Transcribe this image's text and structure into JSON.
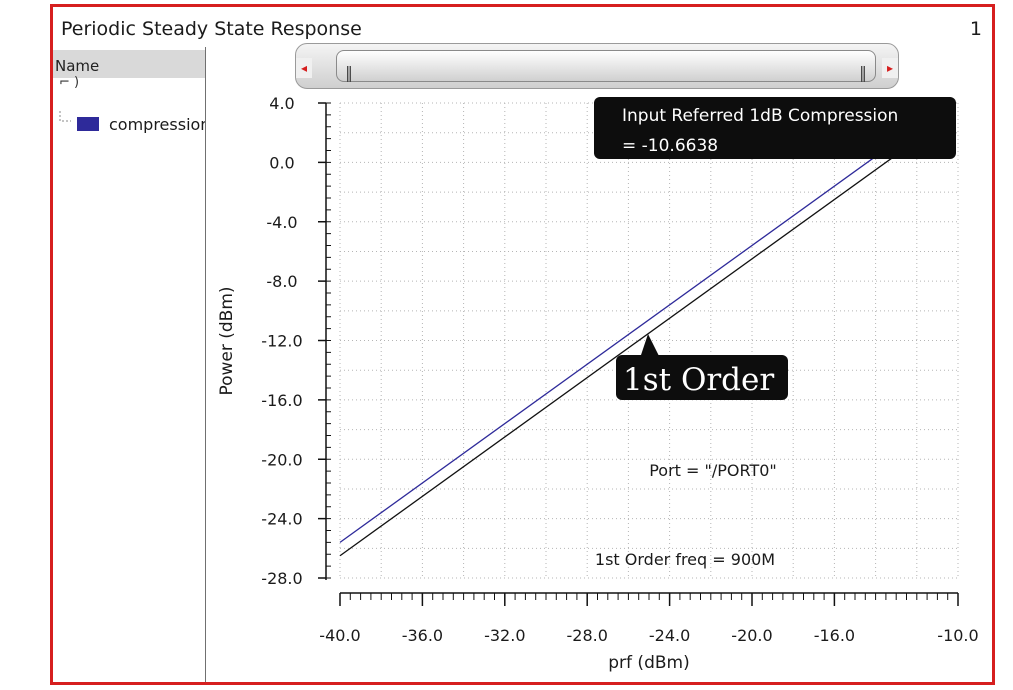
{
  "window": {
    "title": "Periodic Steady State Response",
    "index": "1"
  },
  "sidebar": {
    "header": "Name",
    "tree_glyph": "⌐  )",
    "items": [
      {
        "label": "compression",
        "color": "#2e2a9a"
      }
    ]
  },
  "scrollbar": {
    "left_arrow": "◂",
    "right_arrow": "▸",
    "grip": "‖"
  },
  "annotations": {
    "compression_box": [
      "Input Referred 1dB Compression",
      "= -10.6638"
    ],
    "order_label": "1st Order",
    "port_text": "Port = \"/PORT0\"",
    "freq_text": "1st Order freq = 900M"
  },
  "chart_data": {
    "type": "line",
    "xlabel": "prf (dBm)",
    "ylabel": "Power (dBm)",
    "xlim": [
      -40.0,
      -10.0
    ],
    "ylim": [
      -28.0,
      4.0
    ],
    "xticks": [
      -40.0,
      -36.0,
      -32.0,
      -28.0,
      -24.0,
      -20.0,
      -16.0,
      -10.0
    ],
    "xtick_labels": [
      "-40.0",
      "-36.0",
      "-32.0",
      "-28.0",
      "-24.0",
      "-20.0",
      "-16.0",
      "-10.0"
    ],
    "yticks": [
      4.0,
      0.0,
      -4.0,
      -8.0,
      -12.0,
      -16.0,
      -20.0,
      -24.0,
      -28.0
    ],
    "ytick_labels": [
      "4.0",
      "0.0",
      "-4.0",
      "-8.0",
      "-12.0",
      "-16.0",
      "-20.0",
      "-24.0",
      "-28.0"
    ],
    "grid": true,
    "series": [
      {
        "name": "compression",
        "color": "#2e2a9a",
        "x": [
          -40.0,
          -13.0
        ],
        "y": [
          -25.6,
          1.4
        ]
      },
      {
        "name": "1st Order",
        "color": "#111111",
        "x": [
          -40.0,
          -13.0
        ],
        "y": [
          -26.5,
          0.5
        ]
      }
    ],
    "compression_point": {
      "x": -10.6638,
      "y": 3.4
    }
  }
}
